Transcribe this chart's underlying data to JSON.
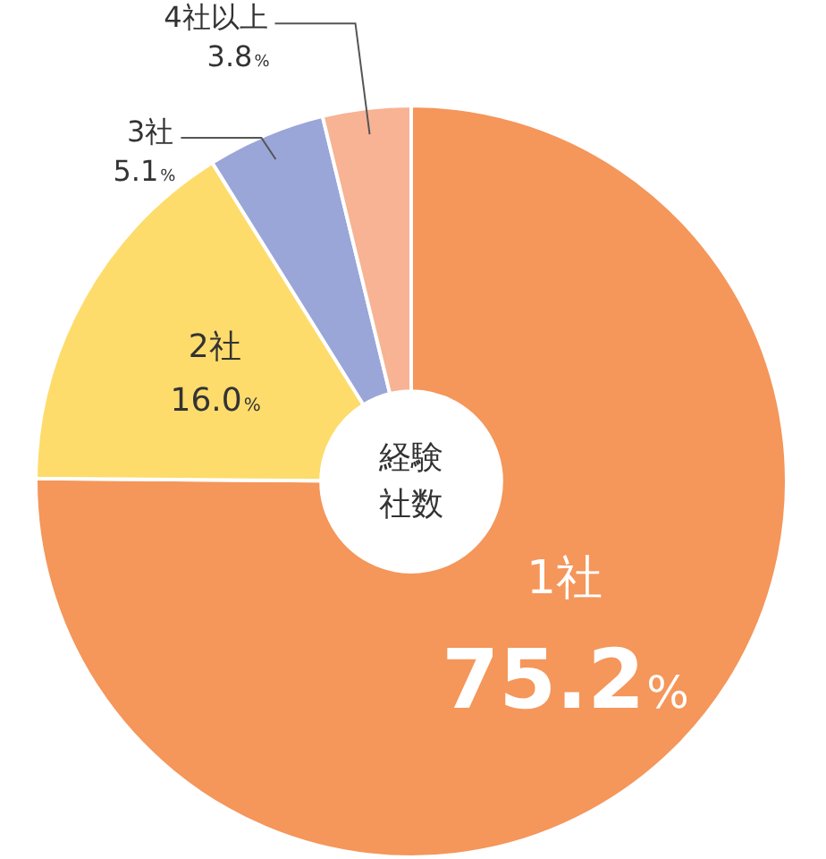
{
  "chart_data": {
    "type": "donut",
    "title": "経験社数",
    "categories": [
      "1社",
      "2社",
      "3社",
      "4社以上"
    ],
    "values": [
      75.2,
      16.0,
      5.1,
      3.8
    ],
    "value_labels": [
      "75.2%",
      "16.0%",
      "5.1%",
      "3.8%"
    ],
    "colors": [
      "#f5965a",
      "#fddc6c",
      "#9aa6d8",
      "#f7b393"
    ],
    "legend": false
  }
}
